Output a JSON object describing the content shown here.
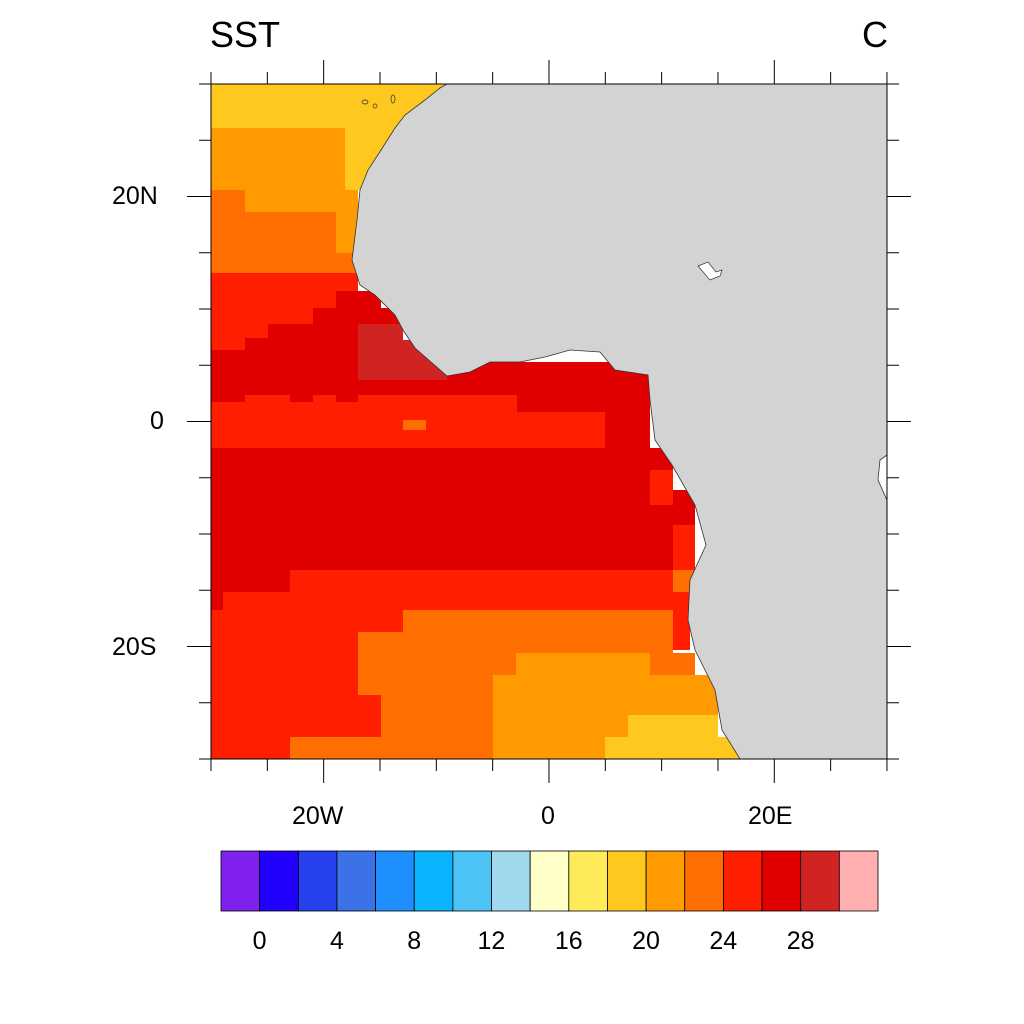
{
  "title_left": "SST",
  "title_right": "C",
  "axes": {
    "lon_labels": [
      "20W",
      "0",
      "20E"
    ],
    "lat_labels": [
      "20N",
      "0",
      "20S"
    ],
    "lon_range": [
      -30,
      30
    ],
    "lat_range": [
      -30,
      30
    ]
  },
  "colorbar": {
    "labels": [
      "0",
      "4",
      "8",
      "12",
      "16",
      "20",
      "24",
      "28"
    ],
    "colors": [
      "#7F20EF",
      "#2200FF",
      "#2540EC",
      "#3B72E8",
      "#1F8FFF",
      "#0AB4FF",
      "#4CC3F5",
      "#A0D8EE",
      "#FFFFC8",
      "#FFEB5A",
      "#FFC81E",
      "#FF9B00",
      "#FF6E00",
      "#FF1E00",
      "#E10000",
      "#D22323",
      "#FFAFAF"
    ]
  },
  "land_color": "#D3D3D3"
}
